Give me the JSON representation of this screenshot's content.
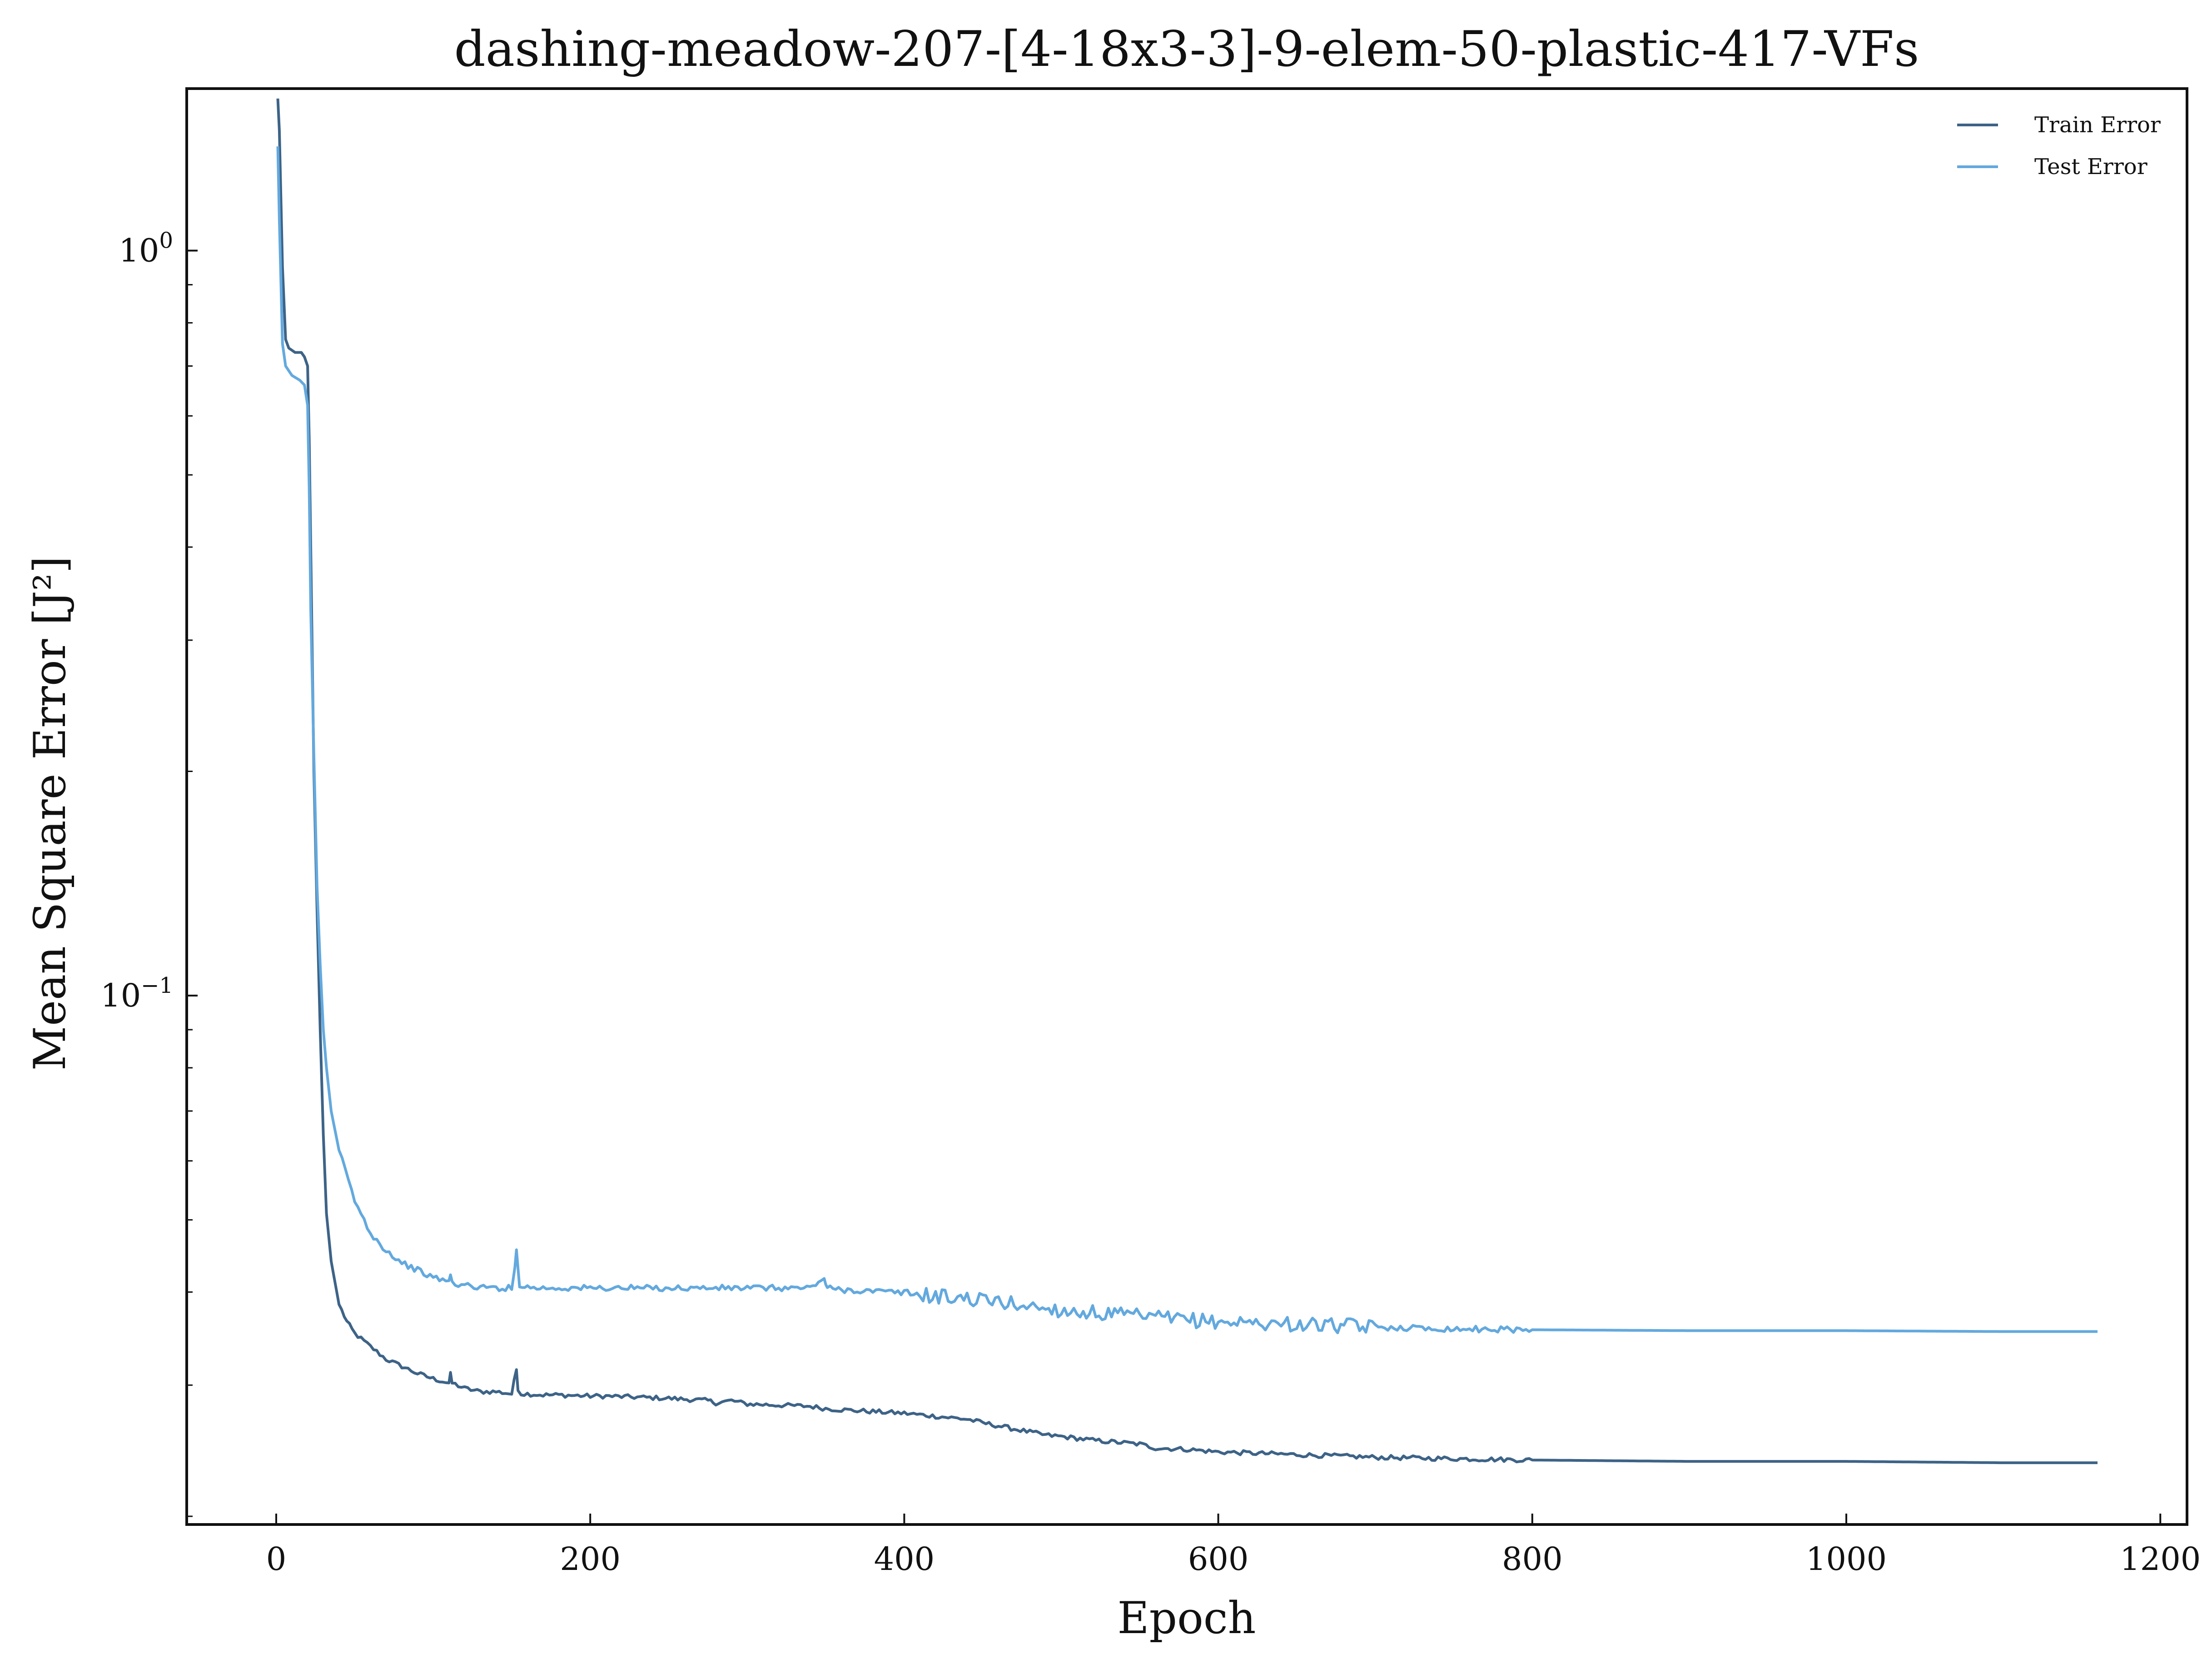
{
  "chart_data": {
    "type": "line",
    "title": "dashing-meadow-207-[4-18x3-3]-9-elem-50-plastic-417-VFs",
    "xlabel": "Epoch",
    "ylabel": "Mean Square Error [J²]",
    "xlim": [
      -57,
      1217
    ],
    "ylim": [
      0.0195,
      1.65
    ],
    "yscale": "log",
    "xticks": [
      0,
      200,
      400,
      600,
      800,
      1000,
      1200
    ],
    "xtick_labels": [
      "0",
      "200",
      "400",
      "600",
      "800",
      "1000",
      "1200"
    ],
    "yticks": [
      1.0,
      0.1
    ],
    "ytick_labels": [
      {
        "base": "10",
        "exp": "0"
      },
      {
        "base": "10",
        "exp": "−1"
      }
    ],
    "yminor_ticks": [
      0.02,
      0.03,
      0.04,
      0.05,
      0.06,
      0.07,
      0.08,
      0.09,
      0.2,
      0.3,
      0.4,
      0.5,
      0.6,
      0.7,
      0.8,
      0.9
    ],
    "grid": false,
    "legend": {
      "position": "top-right"
    },
    "series": [
      {
        "name": "Train Error",
        "color": "#3d6387",
        "x": [
          1,
          2,
          4,
          6,
          8,
          12,
          16,
          18,
          20,
          21,
          22,
          24,
          26,
          28,
          30,
          32,
          35,
          40,
          45,
          50,
          60,
          70,
          80,
          90,
          100,
          110,
          111,
          112,
          120,
          130,
          140,
          150,
          153,
          154,
          156,
          160,
          170,
          180,
          200,
          210,
          250,
          275,
          280,
          290,
          300,
          340,
          350,
          360,
          400,
          440,
          450,
          470,
          490,
          500,
          520,
          550,
          560,
          580,
          600,
          650,
          700,
          750,
          800,
          900,
          1000,
          1100,
          1160
        ],
        "y": [
          1.6,
          1.45,
          0.95,
          0.76,
          0.74,
          0.73,
          0.73,
          0.72,
          0.7,
          0.56,
          0.4,
          0.2,
          0.13,
          0.09,
          0.065,
          0.051,
          0.044,
          0.0385,
          0.0365,
          0.0352,
          0.0338,
          0.0325,
          0.0318,
          0.0311,
          0.0306,
          0.0302,
          0.031,
          0.0302,
          0.0297,
          0.0294,
          0.0294,
          0.0292,
          0.0315,
          0.0297,
          0.0292,
          0.0292,
          0.0291,
          0.0291,
          0.029,
          0.029,
          0.0288,
          0.0286,
          0.0284,
          0.0286,
          0.0283,
          0.0281,
          0.0279,
          0.0278,
          0.0275,
          0.027,
          0.0267,
          0.0262,
          0.0257,
          0.0256,
          0.0253,
          0.025,
          0.0247,
          0.0246,
          0.0244,
          0.0242,
          0.024,
          0.0239,
          0.0238,
          0.0237,
          0.0237,
          0.0236,
          0.0236
        ]
      },
      {
        "name": "Test Error",
        "color": "#63a9de",
        "x": [
          1,
          2,
          4,
          6,
          10,
          15,
          18,
          20,
          21,
          22,
          24,
          26,
          28,
          30,
          32,
          35,
          40,
          50,
          60,
          70,
          80,
          90,
          100,
          110,
          111,
          112,
          120,
          130,
          140,
          150,
          152,
          153,
          155,
          160,
          170,
          200,
          250,
          300,
          340,
          349,
          350,
          351,
          360,
          380,
          400,
          420,
          440,
          460,
          480,
          500,
          520,
          550,
          580,
          600,
          650,
          700,
          750,
          800,
          900,
          1000,
          1100,
          1160
        ],
        "y": [
          1.38,
          1.1,
          0.75,
          0.7,
          0.68,
          0.67,
          0.66,
          0.62,
          0.48,
          0.33,
          0.21,
          0.14,
          0.11,
          0.09,
          0.08,
          0.07,
          0.062,
          0.053,
          0.048,
          0.0455,
          0.0438,
          0.0428,
          0.0418,
          0.0414,
          0.042,
          0.0412,
          0.0408,
          0.0406,
          0.0405,
          0.0405,
          0.043,
          0.0455,
          0.041,
          0.0406,
          0.0405,
          0.0405,
          0.0405,
          0.0405,
          0.0405,
          0.0418,
          0.0408,
          0.0405,
          0.0403,
          0.0401,
          0.0399,
          0.0395,
          0.0392,
          0.0388,
          0.0383,
          0.0378,
          0.0375,
          0.0371,
          0.0367,
          0.0365,
          0.0362,
          0.0359,
          0.0357,
          0.0356,
          0.0355,
          0.0355,
          0.0354,
          0.0354
        ]
      }
    ]
  }
}
